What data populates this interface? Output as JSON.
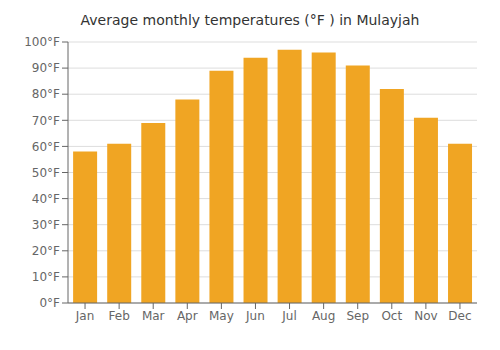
{
  "chart_data": {
    "type": "bar",
    "title": "Average monthly temperatures (°F ) in Mulayjah",
    "categories": [
      "Jan",
      "Feb",
      "Mar",
      "Apr",
      "May",
      "Jun",
      "Jul",
      "Aug",
      "Sep",
      "Oct",
      "Nov",
      "Dec"
    ],
    "values": [
      58,
      61,
      69,
      78,
      89,
      94,
      97,
      96,
      91,
      82,
      71,
      61
    ],
    "color": "#F0A523",
    "ylim": [
      0,
      100
    ],
    "yticks": [
      {
        "value": 0,
        "label": "0°F"
      },
      {
        "value": 10,
        "label": "10°F"
      },
      {
        "value": 20,
        "label": "20°F"
      },
      {
        "value": 30,
        "label": "30°F"
      },
      {
        "value": 40,
        "label": "40°F"
      },
      {
        "value": 50,
        "label": "50°F"
      },
      {
        "value": 60,
        "label": "60°F"
      },
      {
        "value": 70,
        "label": "70°F"
      },
      {
        "value": 80,
        "label": "80°F"
      },
      {
        "value": 90,
        "label": "90°F"
      },
      {
        "value": 100,
        "label": "100°F"
      }
    ],
    "grid": true
  }
}
